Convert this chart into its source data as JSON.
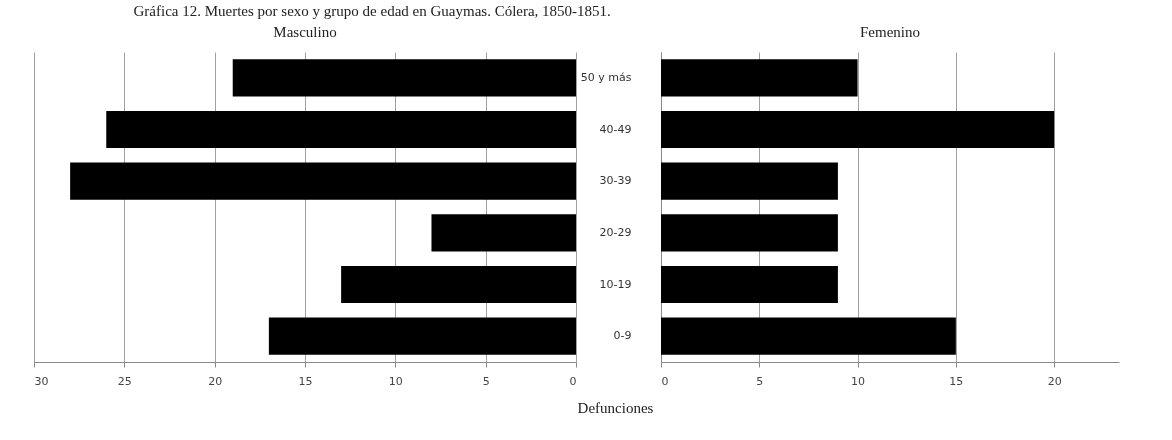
{
  "chart_data": [
    {
      "type": "bar",
      "orientation": "horizontal",
      "title": "Masculino",
      "annotations": [
        "Gráfica 12. Muertes por sexo y grupo de edad en Guaymas. Cólera, 1850-1851."
      ],
      "categories": [
        "50 y más",
        "40-49",
        "30-39",
        "20-29",
        "10-19",
        "0-9"
      ],
      "values": [
        19,
        26,
        28,
        8,
        13,
        17
      ],
      "color": "#000000",
      "xlim": [
        30,
        0
      ],
      "xticks": [
        30,
        25,
        20,
        15,
        10,
        5,
        0
      ],
      "grid": "x",
      "tick_labels": "x"
    },
    {
      "type": "bar",
      "orientation": "horizontal",
      "title": "Femenino",
      "xlabel": "Defunciones",
      "categories": [
        "50 y más",
        "40-49",
        "30-39",
        "20-29",
        "10-19",
        "0-9"
      ],
      "values": [
        10,
        20,
        9,
        9,
        9,
        15
      ],
      "color": "#000000",
      "xlim": [
        0,
        23.3
      ],
      "xticks": [
        0,
        5,
        10,
        15,
        20
      ],
      "grid": "x"
    }
  ]
}
